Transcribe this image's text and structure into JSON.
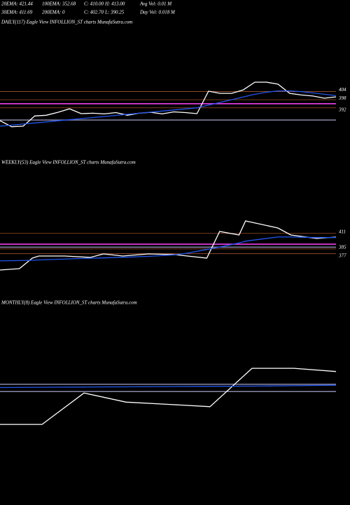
{
  "header": {
    "rows": [
      [
        "20EMA: 421.44",
        "100EMA: 352.68",
        "C: 410.00",
        "H: 413.00",
        "Avg Vol: 0.01 M"
      ],
      [
        "30EMA: 411.69",
        "200EMA: 0",
        "C: 402.70",
        "L: 390.25",
        "Day Vol: 0.018 M"
      ]
    ]
  },
  "chart_data": [
    {
      "type": "line",
      "title": "DAILY(117) Eagle  View  INFOLLION_ST charts MunafaSutra.com",
      "x": [
        0,
        4,
        8,
        12,
        16,
        20,
        24,
        28,
        32,
        36,
        40,
        44,
        48,
        52,
        56,
        60,
        64,
        68,
        72,
        76,
        80,
        84,
        88,
        92,
        96,
        100,
        104,
        108,
        112,
        116
      ],
      "xlim": [
        0,
        116
      ],
      "ylim": [
        368,
        452
      ],
      "yticks": [
        404,
        398,
        392
      ],
      "grid_color": "#a0522d",
      "hlines": [
        {
          "value": 395,
          "color": "#ff44ff"
        },
        {
          "value": 383,
          "color": "#8888aa"
        }
      ],
      "series": [
        {
          "color": "#ffffff",
          "values": [
            382.5,
            378,
            378.4,
            386,
            386.5,
            388.7,
            391.3,
            387.7,
            388,
            387.5,
            388.5,
            386.5,
            388,
            388.7,
            387.5,
            389,
            388.5,
            387.7,
            404.3,
            402.7,
            402.7,
            405.3,
            411,
            411,
            409.5,
            402.7,
            401.5,
            400.7,
            399.1,
            400.1
          ]
        },
        {
          "color": "#2255ee",
          "values": [
            378.4,
            379.2,
            380,
            380.8,
            381.6,
            382.4,
            383.2,
            384,
            384.8,
            385.6,
            386.4,
            387.2,
            388,
            388.8,
            389.6,
            390.4,
            391.2,
            392,
            394,
            396,
            398,
            400,
            402,
            403.5,
            404.5,
            404.5,
            404,
            403,
            402,
            401
          ]
        }
      ]
    },
    {
      "type": "line",
      "title": "WEEKLY(53) Eagle  View  INFOLLION_ST charts MunafaSutra.com",
      "x": [
        0,
        3,
        5,
        6,
        10,
        14,
        16,
        19,
        23,
        27,
        29,
        32,
        34,
        37,
        38,
        43,
        45,
        49,
        52
      ],
      "xlim": [
        0,
        52
      ],
      "ylim": [
        332,
        520
      ],
      "yticks": [
        411,
        385,
        377
      ],
      "grid_color": "#a0522d",
      "hlines": [
        {
          "value": 393,
          "color": "#ff44ff"
        },
        {
          "value": 388,
          "color": "#8888aa"
        }
      ],
      "series": [
        {
          "color": "#ffffff",
          "values": [
            349.6,
            352,
            369.6,
            373.1,
            373.1,
            370.8,
            376.7,
            373.1,
            376.7,
            375.5,
            373.1,
            369.6,
            414.3,
            408.4,
            431.9,
            420.1,
            408.4,
            402.5,
            404.9
          ]
        },
        {
          "color": "#2255ee",
          "values": [
            365,
            365.5,
            366,
            366.5,
            368,
            369.5,
            370,
            371,
            372.5,
            375,
            378,
            384,
            388,
            395,
            398,
            405,
            405,
            404,
            404
          ]
        }
      ]
    },
    {
      "type": "line",
      "title": "MONTHLY(8) Eagle  View  INFOLLION_ST charts MunafaSutra.com",
      "x": [
        0,
        1,
        2,
        3,
        4,
        5,
        6,
        7,
        8
      ],
      "xlim": [
        0,
        8
      ],
      "ylim": [
        200,
        600
      ],
      "yticks": [],
      "grid_color": "#a0522d",
      "hlines": [
        {
          "value": 434,
          "color": "#8888aa"
        },
        {
          "value": 418,
          "color": "#8888aa"
        }
      ],
      "series": [
        {
          "color": "#ffffff",
          "values": [
            346,
            346,
            415,
            395,
            390,
            385,
            469,
            469,
            462
          ]
        },
        {
          "color": "#2255ee",
          "values": [
            427,
            427.5,
            428,
            428.5,
            429,
            429.5,
            430,
            431,
            432
          ]
        }
      ]
    }
  ]
}
